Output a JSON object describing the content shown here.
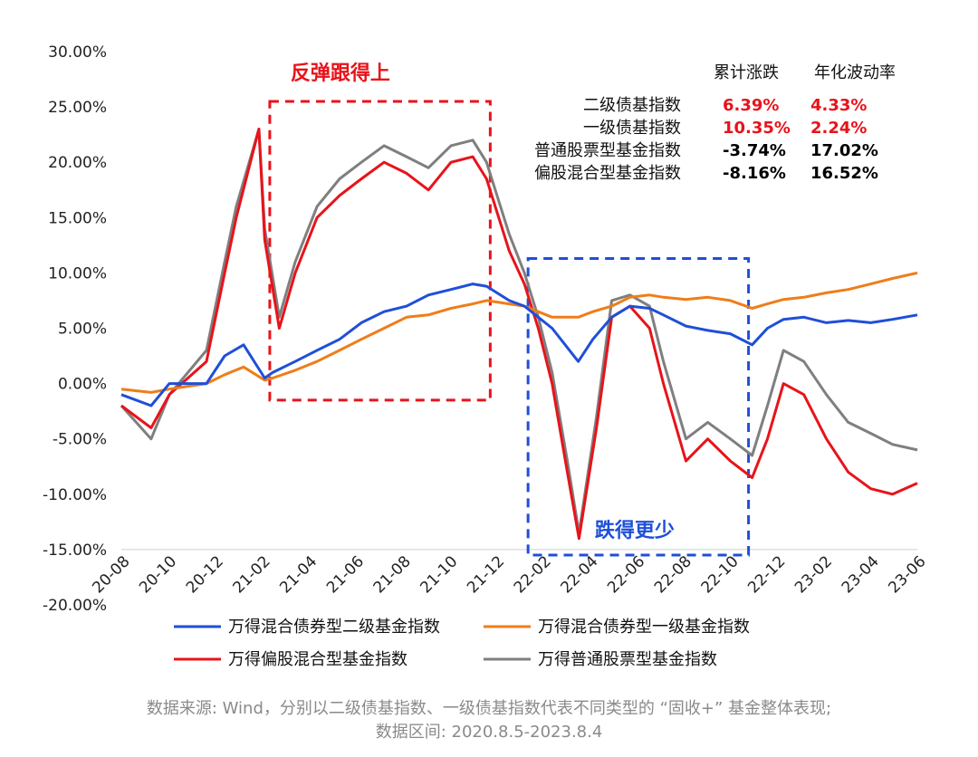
{
  "chart_data": {
    "type": "line",
    "title": "",
    "xlabel": "",
    "ylabel": "",
    "ylim": [
      -0.2,
      0.3
    ],
    "y_ticks": [
      "30.00%",
      "25.00%",
      "20.00%",
      "15.00%",
      "10.00%",
      "5.00%",
      "0.00%",
      "-5.00%",
      "-10.00%",
      "-15.00%",
      "-20.00%"
    ],
    "x_ticks": [
      "20-08",
      "20-10",
      "20-12",
      "21-02",
      "21-04",
      "21-06",
      "21-08",
      "21-10",
      "21-12",
      "22-02",
      "22-04",
      "22-06",
      "22-08",
      "22-10",
      "22-12",
      "23-02",
      "23-04",
      "23-06"
    ],
    "x_range": [
      "2020-08-05",
      "2023-08-04"
    ],
    "grid": false,
    "legend_position": "bottom",
    "series": [
      {
        "name": "万得混合债券型二级基金指数",
        "color": "#1f4fd8",
        "x": [
          "2020-08-05",
          "2020-09-15",
          "2020-10-10",
          "2020-11-30",
          "2020-12-25",
          "2021-01-20",
          "2021-02-18",
          "2021-03-01",
          "2021-04-01",
          "2021-05-01",
          "2021-06-01",
          "2021-07-01",
          "2021-08-01",
          "2021-09-01",
          "2021-10-01",
          "2021-11-01",
          "2021-12-01",
          "2021-12-20",
          "2022-01-20",
          "2022-02-10",
          "2022-03-01",
          "2022-03-20",
          "2022-04-25",
          "2022-05-15",
          "2022-06-10",
          "2022-07-05",
          "2022-08-01",
          "2022-08-20",
          "2022-09-20",
          "2022-10-20",
          "2022-11-20",
          "2022-12-20",
          "2023-01-10",
          "2023-02-01",
          "2023-03-01",
          "2023-04-01",
          "2023-05-01",
          "2023-06-01",
          "2023-07-01",
          "2023-08-04"
        ],
        "y": [
          -0.01,
          -0.02,
          0.0,
          0.0,
          0.025,
          0.035,
          0.005,
          0.01,
          0.02,
          0.03,
          0.04,
          0.055,
          0.065,
          0.07,
          0.08,
          0.085,
          0.09,
          0.088,
          0.075,
          0.07,
          0.06,
          0.05,
          0.02,
          0.04,
          0.06,
          0.07,
          0.068,
          0.062,
          0.052,
          0.048,
          0.045,
          0.035,
          0.05,
          0.058,
          0.06,
          0.055,
          0.057,
          0.055,
          0.058,
          0.062
        ]
      },
      {
        "name": "万得混合债券型一级基金指数",
        "color": "#ef7d1a",
        "x": [
          "2020-08-05",
          "2020-09-15",
          "2020-10-10",
          "2020-11-30",
          "2020-12-25",
          "2021-01-20",
          "2021-02-18",
          "2021-03-01",
          "2021-04-01",
          "2021-05-01",
          "2021-06-01",
          "2021-07-01",
          "2021-08-01",
          "2021-09-01",
          "2021-10-01",
          "2021-11-01",
          "2021-12-01",
          "2021-12-20",
          "2022-01-20",
          "2022-02-10",
          "2022-03-01",
          "2022-03-20",
          "2022-04-25",
          "2022-05-15",
          "2022-06-10",
          "2022-07-05",
          "2022-08-01",
          "2022-08-20",
          "2022-09-20",
          "2022-10-20",
          "2022-11-20",
          "2022-12-20",
          "2023-01-10",
          "2023-02-01",
          "2023-03-01",
          "2023-04-01",
          "2023-05-01",
          "2023-06-01",
          "2023-07-01",
          "2023-08-04"
        ],
        "y": [
          -0.005,
          -0.008,
          -0.005,
          0.0,
          0.008,
          0.015,
          0.003,
          0.005,
          0.012,
          0.02,
          0.03,
          0.04,
          0.05,
          0.06,
          0.062,
          0.068,
          0.072,
          0.075,
          0.072,
          0.07,
          0.065,
          0.06,
          0.06,
          0.065,
          0.07,
          0.078,
          0.08,
          0.078,
          0.076,
          0.078,
          0.075,
          0.068,
          0.072,
          0.076,
          0.078,
          0.082,
          0.085,
          0.09,
          0.095,
          0.1
        ]
      },
      {
        "name": "万得偏股混合型基金指数",
        "color": "#e8131a",
        "x": [
          "2020-08-05",
          "2020-09-15",
          "2020-10-10",
          "2020-11-30",
          "2020-12-25",
          "2021-01-10",
          "2021-02-10",
          "2021-02-18",
          "2021-03-10",
          "2021-04-01",
          "2021-05-01",
          "2021-06-01",
          "2021-07-01",
          "2021-08-01",
          "2021-09-01",
          "2021-10-01",
          "2021-11-01",
          "2021-12-01",
          "2021-12-20",
          "2022-01-20",
          "2022-02-10",
          "2022-03-01",
          "2022-03-20",
          "2022-04-10",
          "2022-04-26",
          "2022-05-20",
          "2022-06-10",
          "2022-07-05",
          "2022-08-01",
          "2022-08-20",
          "2022-09-20",
          "2022-10-20",
          "2022-11-20",
          "2022-12-20",
          "2023-01-10",
          "2023-02-01",
          "2023-03-01",
          "2023-04-01",
          "2023-05-01",
          "2023-06-01",
          "2023-07-01",
          "2023-08-04"
        ],
        "y": [
          -0.02,
          -0.04,
          -0.01,
          0.02,
          0.1,
          0.15,
          0.23,
          0.13,
          0.05,
          0.1,
          0.15,
          0.17,
          0.185,
          0.2,
          0.19,
          0.175,
          0.2,
          0.205,
          0.185,
          0.12,
          0.09,
          0.05,
          0.0,
          -0.08,
          -0.14,
          -0.04,
          0.06,
          0.07,
          0.05,
          0.0,
          -0.07,
          -0.05,
          -0.07,
          -0.085,
          -0.05,
          0.0,
          -0.01,
          -0.05,
          -0.08,
          -0.095,
          -0.1,
          -0.09
        ]
      },
      {
        "name": "万得普通股票型基金指数",
        "color": "#7f7f7f",
        "x": [
          "2020-08-05",
          "2020-09-15",
          "2020-10-10",
          "2020-11-30",
          "2020-12-25",
          "2021-01-10",
          "2021-02-10",
          "2021-02-18",
          "2021-03-10",
          "2021-04-01",
          "2021-05-01",
          "2021-06-01",
          "2021-07-01",
          "2021-08-01",
          "2021-09-01",
          "2021-10-01",
          "2021-11-01",
          "2021-12-01",
          "2021-12-20",
          "2022-01-20",
          "2022-02-10",
          "2022-03-01",
          "2022-03-20",
          "2022-04-10",
          "2022-04-26",
          "2022-05-20",
          "2022-06-10",
          "2022-07-05",
          "2022-08-01",
          "2022-08-20",
          "2022-09-20",
          "2022-10-20",
          "2022-11-20",
          "2022-12-20",
          "2023-01-10",
          "2023-02-01",
          "2023-03-01",
          "2023-04-01",
          "2023-05-01",
          "2023-06-01",
          "2023-07-01",
          "2023-08-04"
        ],
        "y": [
          -0.02,
          -0.05,
          -0.01,
          0.03,
          0.11,
          0.16,
          0.23,
          0.14,
          0.06,
          0.11,
          0.16,
          0.185,
          0.2,
          0.215,
          0.205,
          0.195,
          0.215,
          0.22,
          0.2,
          0.135,
          0.1,
          0.06,
          0.01,
          -0.07,
          -0.135,
          -0.03,
          0.075,
          0.08,
          0.07,
          0.02,
          -0.05,
          -0.035,
          -0.05,
          -0.065,
          -0.02,
          0.03,
          0.02,
          -0.01,
          -0.035,
          -0.045,
          -0.055,
          -0.06
        ]
      }
    ],
    "annotations": [
      {
        "text": "反弹跟得上",
        "color": "#e8131a",
        "box_x": [
          "2021-02-25",
          "2021-12-25"
        ],
        "box_y": [
          -0.015,
          0.255
        ]
      },
      {
        "text": "跌得更少",
        "color": "#1f4fd8",
        "box_x": [
          "2022-02-15",
          "2022-12-15"
        ],
        "box_y": [
          -0.155,
          0.113
        ]
      }
    ],
    "table": {
      "headers": [
        "累计涨跌",
        "年化波动率"
      ],
      "rows": [
        {
          "name": "二级债基指数",
          "cum": "6.39%",
          "vol": "4.33%",
          "color": "#e8131a"
        },
        {
          "name": "一级债基指数",
          "cum": "10.35%",
          "vol": "2.24%",
          "color": "#e8131a"
        },
        {
          "name": "普通股票型基金指数",
          "cum": "-3.74%",
          "vol": "17.02%",
          "color": "#000000"
        },
        {
          "name": "偏股混合型基金指数",
          "cum": "-8.16%",
          "vol": "16.52%",
          "color": "#000000"
        }
      ]
    }
  },
  "source_line1": "数据来源: Wind，分别以二级债基指数、一级债基指数代表不同类型的 “固收+” 基金整体表现;",
  "source_line2": "数据区间: 2020.8.5-2023.8.4"
}
